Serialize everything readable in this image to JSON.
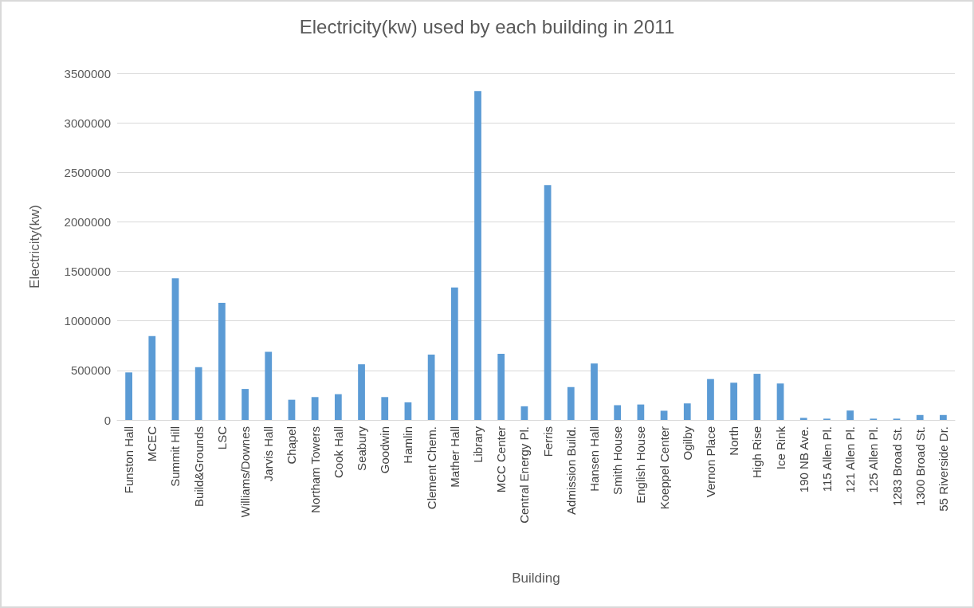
{
  "chart_data": {
    "type": "bar",
    "title": "Electricity(kw) used by each building in 2011",
    "xlabel": "Building",
    "ylabel": "Electricity(kw)",
    "categories": [
      "Funston Hall",
      "MCEC",
      "Summit Hill",
      "Build&Grounds",
      "LSC",
      "Williams/Downes",
      "Jarvis Hall",
      "Chapel",
      "Northam Towers",
      "Cook Hall",
      "Seabury",
      "Goodwin",
      "Hamlin",
      "Clement Chem.",
      "Mather Hall",
      "Library",
      "MCC Center",
      "Central Energy Pl.",
      "Ferris",
      "Admission Build.",
      "Hansen Hall",
      "Smith House",
      "English House",
      "Koeppel Center",
      "Ogilby",
      "Vernon Place",
      "North",
      "High Rise",
      "Ice Rink",
      "190 NB Ave.",
      "115 Allen Pl.",
      "121 Allen Pl.",
      "125 Allen Pl.",
      "1283 Broad St.",
      "1300 Broad St.",
      "55 Riverside Dr."
    ],
    "values": [
      480000,
      846000,
      1430000,
      533000,
      1183000,
      313000,
      687000,
      204000,
      231000,
      260000,
      562000,
      231000,
      178000,
      660000,
      1337000,
      3321000,
      668000,
      138000,
      2371000,
      332000,
      570000,
      149000,
      156000,
      93000,
      167000,
      413000,
      376000,
      466000,
      368000,
      21000,
      13000,
      95000,
      13000,
      13000,
      50000,
      50000
    ],
    "color": "#5b9bd5",
    "ylim": [
      0,
      3500000
    ],
    "yticks": [
      0,
      500000,
      1000000,
      1500000,
      2000000,
      2500000,
      3000000,
      3500000
    ],
    "grid": "y"
  }
}
